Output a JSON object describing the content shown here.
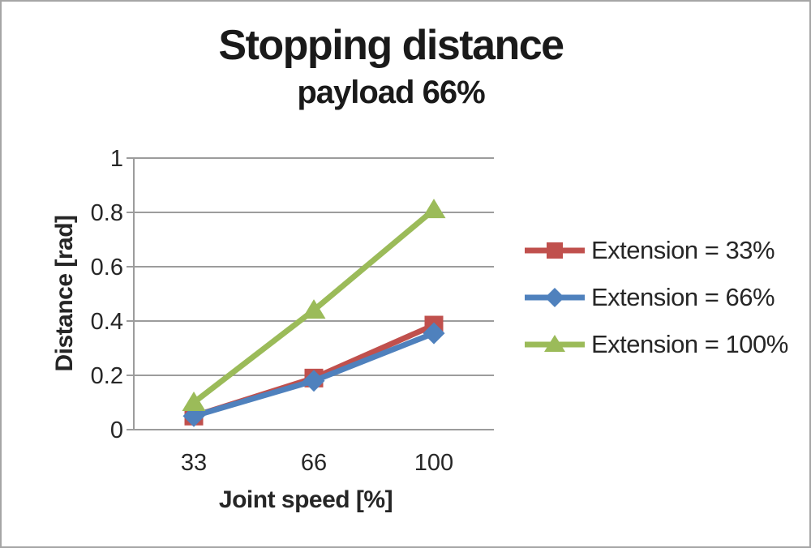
{
  "chart_data": {
    "type": "line",
    "title": "Stopping distance",
    "subtitle": "payload 66%",
    "xlabel": "Joint speed [%]",
    "ylabel": "Distance [rad]",
    "categories": [
      "33",
      "66",
      "100"
    ],
    "series": [
      {
        "name": "Extension = 33%",
        "marker": "square",
        "color": "#C0504D",
        "values": [
          0.05,
          0.19,
          0.385
        ]
      },
      {
        "name": "Extension = 66%",
        "marker": "diamond",
        "color": "#4F81BD",
        "values": [
          0.05,
          0.18,
          0.355
        ]
      },
      {
        "name": "Extension = 100%",
        "marker": "triangle",
        "color": "#9BBB59",
        "values": [
          0.1,
          0.44,
          0.81
        ]
      }
    ],
    "ylim": [
      0,
      1
    ],
    "yticks": [
      0,
      0.2,
      0.4,
      0.6,
      0.8,
      1
    ],
    "ytick_labels": [
      "0",
      "0.2",
      "0.4",
      "0.6",
      "0.8",
      "1"
    ],
    "grid": true,
    "legend_position": "right",
    "axis_color": "#9c9c9c",
    "text_color": "#262626",
    "background_color": "#ffffff",
    "border_color": "#a6a6a6"
  }
}
